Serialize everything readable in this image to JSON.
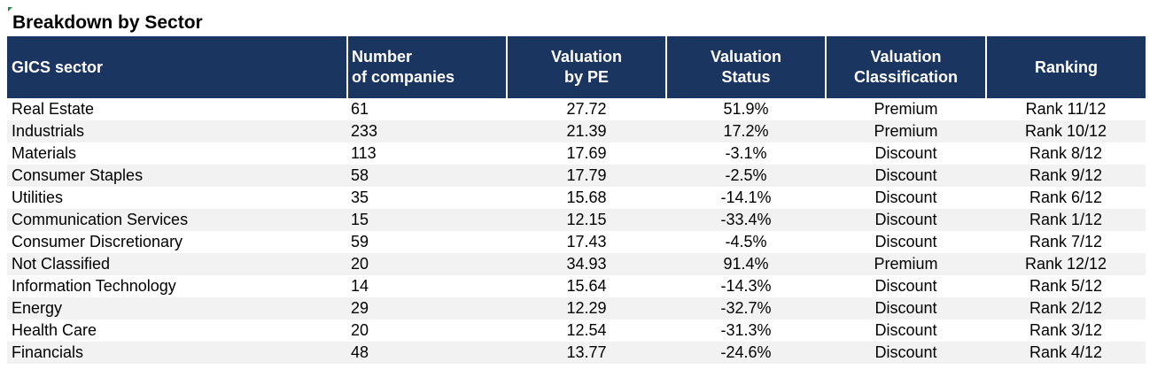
{
  "title": "Breakdown by Sector",
  "table": {
    "headers": [
      "GICS sector",
      "Number\nof companies",
      "Valuation\nby PE",
      "Valuation\nStatus",
      "Valuation\nClassification",
      "Ranking"
    ],
    "rows": [
      [
        "Real Estate",
        "61",
        "27.72",
        "51.9%",
        "Premium",
        "Rank 11/12"
      ],
      [
        "Industrials",
        "233",
        "21.39",
        "17.2%",
        "Premium",
        "Rank 10/12"
      ],
      [
        "Materials",
        "113",
        "17.69",
        "-3.1%",
        "Discount",
        "Rank 8/12"
      ],
      [
        "Consumer Staples",
        "58",
        "17.79",
        "-2.5%",
        "Discount",
        "Rank 9/12"
      ],
      [
        "Utilities",
        "35",
        "15.68",
        "-14.1%",
        "Discount",
        "Rank 6/12"
      ],
      [
        "Communication Services",
        "15",
        "12.15",
        "-33.4%",
        "Discount",
        "Rank 1/12"
      ],
      [
        "Consumer Discretionary",
        "59",
        "17.43",
        "-4.5%",
        "Discount",
        "Rank 7/12"
      ],
      [
        "Not Classified",
        "20",
        "34.93",
        "91.4%",
        "Premium",
        "Rank 12/12"
      ],
      [
        "Information Technology",
        "14",
        "15.64",
        "-14.3%",
        "Discount",
        "Rank 5/12"
      ],
      [
        "Energy",
        "29",
        "12.29",
        "-32.7%",
        "Discount",
        "Rank 2/12"
      ],
      [
        "Health Care",
        "20",
        "12.54",
        "-31.3%",
        "Discount",
        "Rank 3/12"
      ],
      [
        "Financials",
        "48",
        "13.77",
        "-24.6%",
        "Discount",
        "Rank 4/12"
      ]
    ]
  },
  "colors": {
    "header_bg": "#1b3561",
    "header_text": "#ffffff",
    "stripe": "#f2f2f2"
  }
}
